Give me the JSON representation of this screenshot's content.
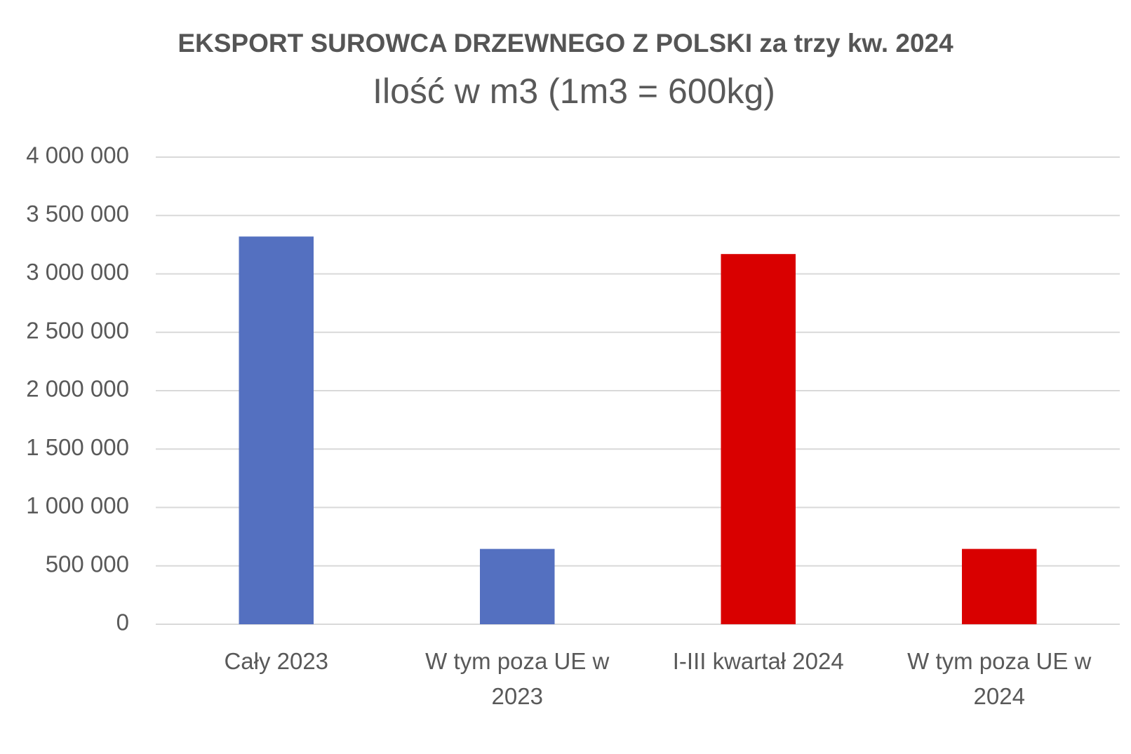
{
  "chart_data": {
    "type": "bar",
    "title": "EKSPORT SUROWCA DRZEWNEGO Z POLSKI za trzy kw. 2024",
    "subtitle": "Ilość w m3 (1m3 = 600kg)",
    "categories": [
      "Cały 2023",
      "W tym poza UE w 2023",
      "I-III kwartał 2024",
      "W tym poza UE w 2024"
    ],
    "values": [
      3320000,
      645000,
      3170000,
      645000
    ],
    "colors": [
      "#5470c0",
      "#5470c0",
      "#d90000",
      "#d90000"
    ],
    "ylim": [
      0,
      4000000
    ],
    "yticks": [
      0,
      {
        "value": 500000,
        "label": "500 000"
      },
      {
        "value": 1000000,
        "label": "1 000 000"
      },
      {
        "value": 1500000,
        "label": "1 500 000"
      },
      {
        "value": 2000000,
        "label": "2 000 000"
      },
      {
        "value": 2500000,
        "label": "2 500 000"
      },
      {
        "value": 3000000,
        "label": "3 000 000"
      },
      {
        "value": 3500000,
        "label": "3 500 000"
      },
      {
        "value": 4000000,
        "label": "4 000 000"
      }
    ],
    "grid": true
  }
}
